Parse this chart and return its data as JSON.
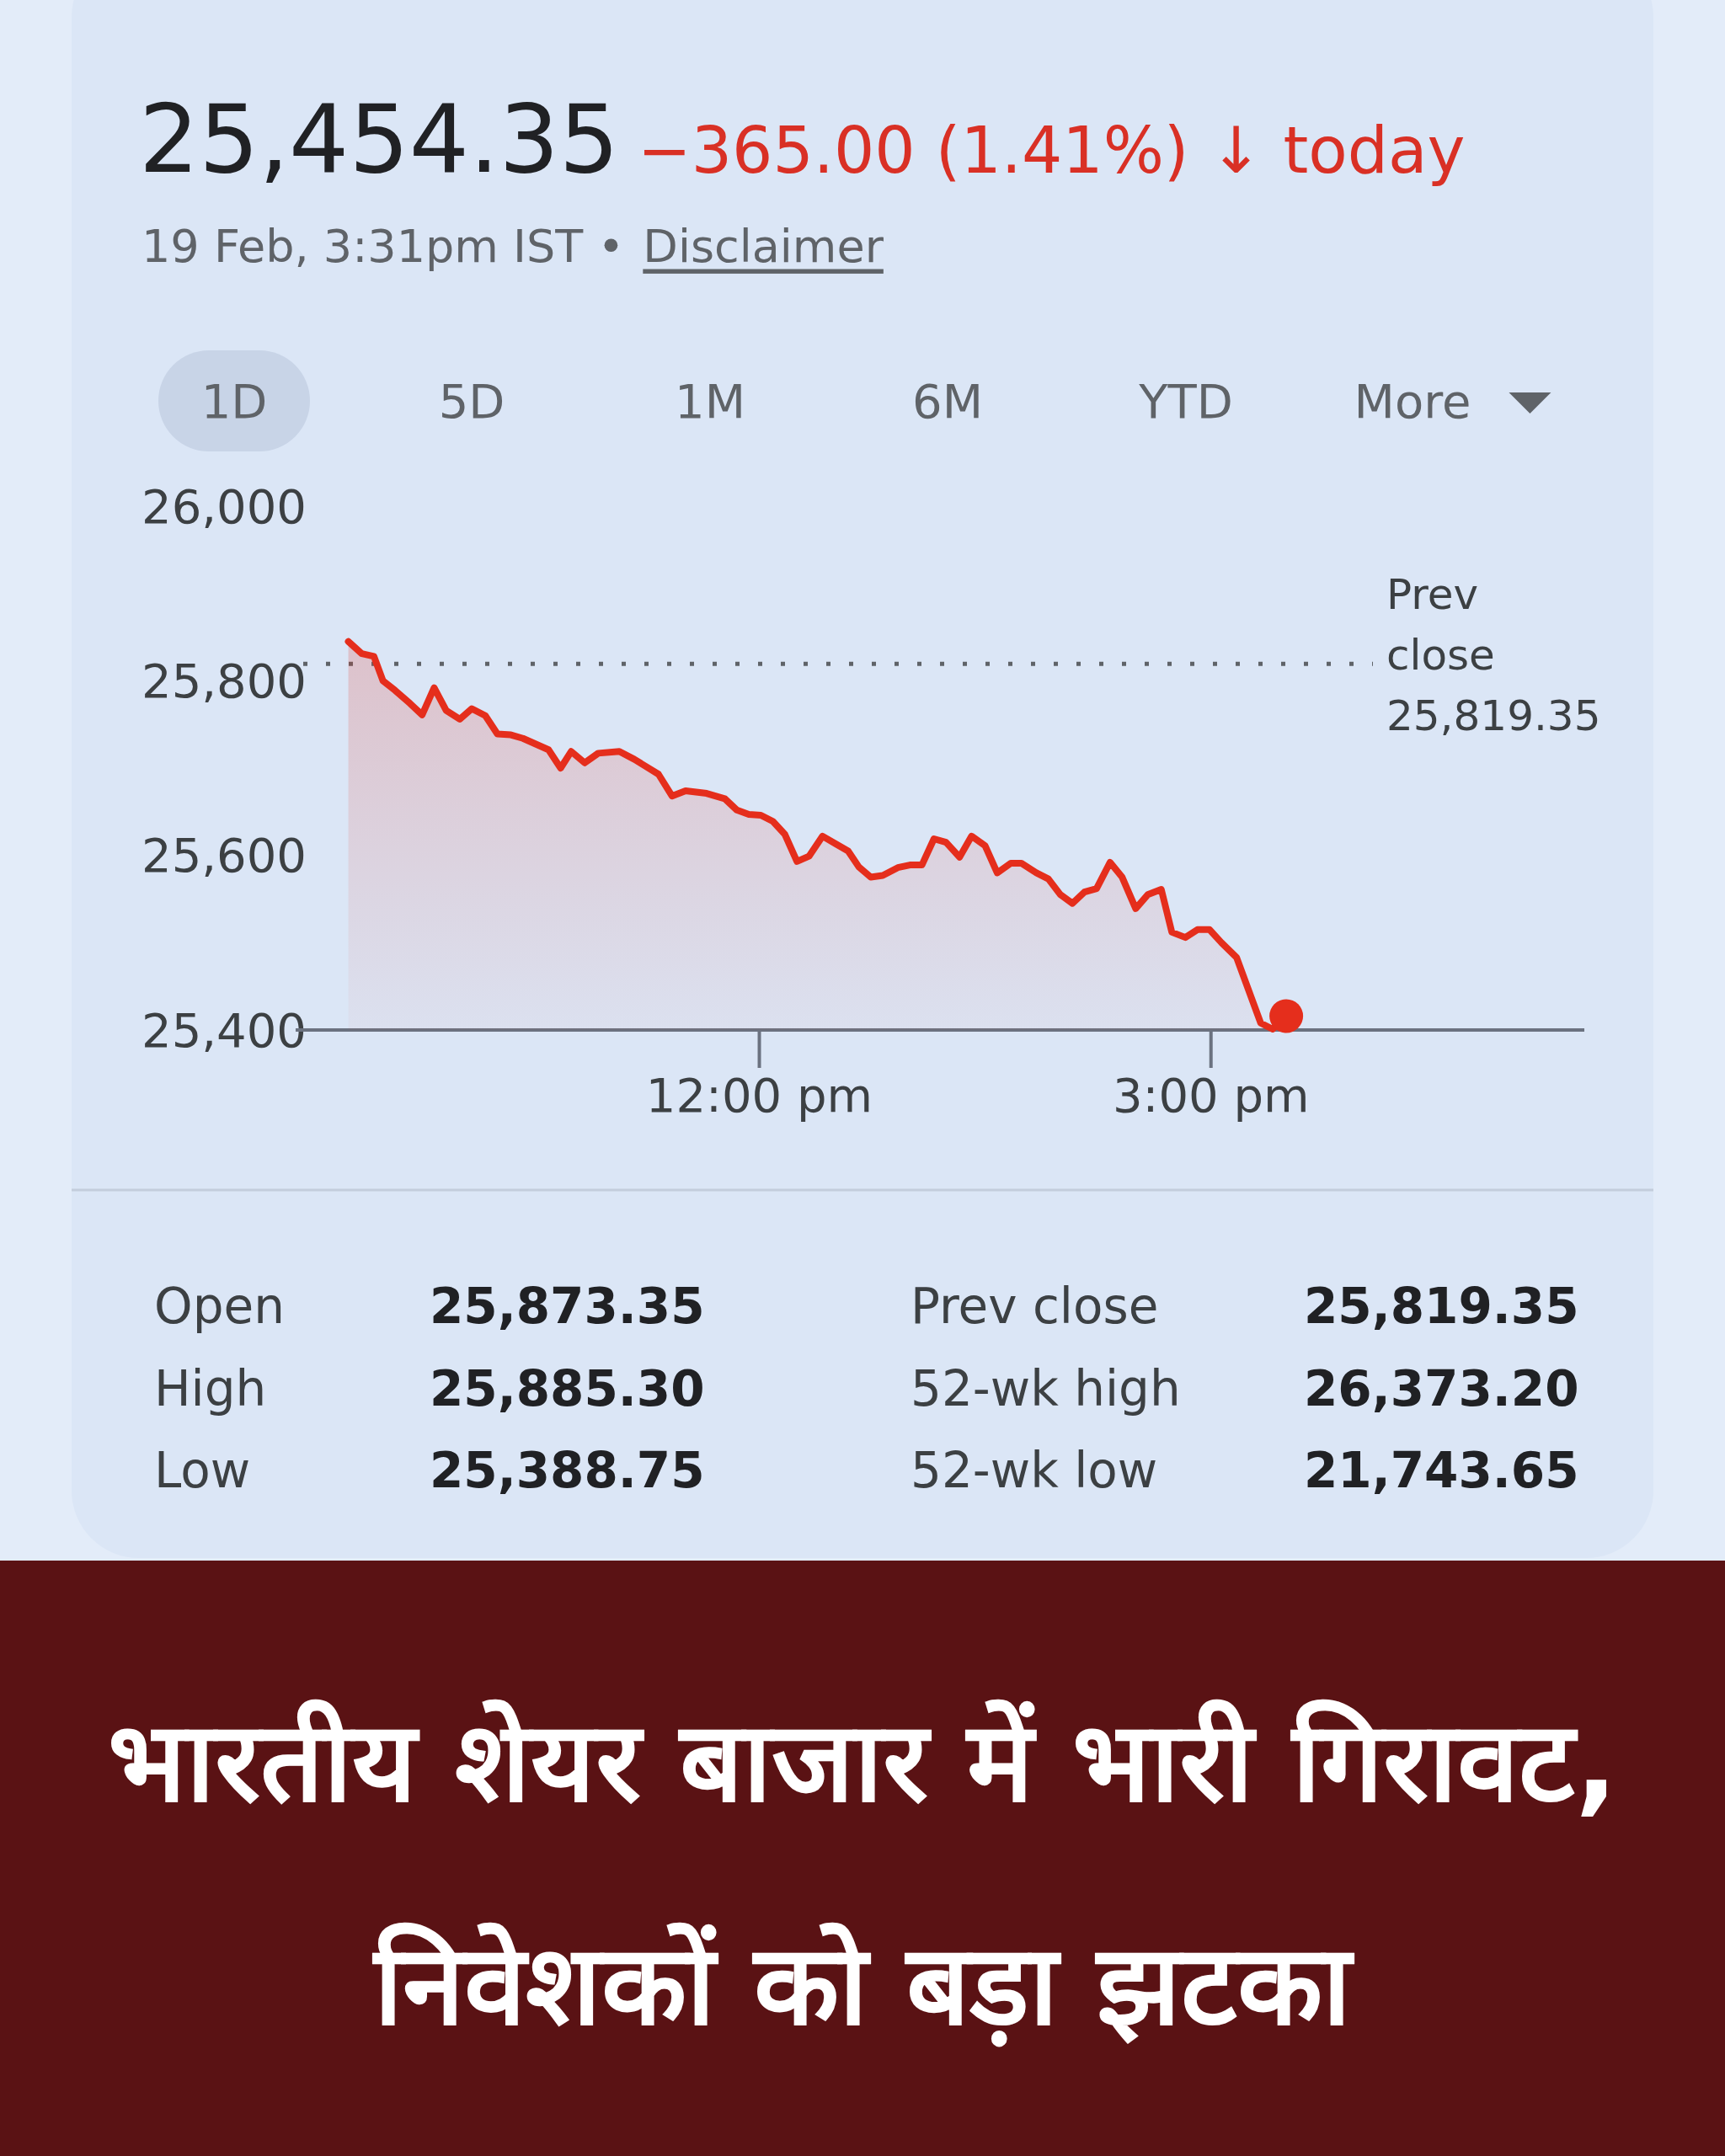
{
  "chart_data": {
    "type": "area",
    "title": "भारतीय शेयर बाजार में भारी गिरावट, निवेशकों को बड़ा झटका",
    "subtitle": "25,454.35",
    "x": [
      9.27,
      9.36,
      9.44,
      9.5,
      9.58,
      9.68,
      9.76,
      9.84,
      9.92,
      10.01,
      10.09,
      10.18,
      10.26,
      10.35,
      10.43,
      10.6,
      10.68,
      10.75,
      10.84,
      10.93,
      11.07,
      11.17,
      11.33,
      11.42,
      11.51,
      11.65,
      11.77,
      11.85,
      11.93,
      12.01,
      12.09,
      12.17,
      12.25,
      12.33,
      12.42,
      12.51,
      12.59,
      12.66,
      12.74,
      12.82,
      12.92,
      13.0,
      13.08,
      13.16,
      13.24,
      13.33,
      13.41,
      13.5,
      13.58,
      13.67,
      13.74,
      13.84,
      13.92,
      14.0,
      14.08,
      14.16,
      14.24,
      14.33,
      14.41,
      14.5,
      14.58,
      14.67,
      14.74,
      14.83,
      14.91,
      14.99,
      15.07,
      15.17,
      15.33,
      15.41,
      15.5
    ],
    "series": [
      {
        "color": "#e52e1c",
        "values": [
          25845,
          25831,
          25828,
          25800,
          25789,
          25774,
          25761,
          25792,
          25766,
          25756,
          25768,
          25760,
          25739,
          25738,
          25734,
          25721,
          25700,
          25719,
          25706,
          25717,
          25719,
          25710,
          25693,
          25668,
          25674,
          25671,
          25665,
          25652,
          25647,
          25646,
          25639,
          25624,
          25593,
          25599,
          25622,
          25613,
          25605,
          25587,
          25575,
          25577,
          25586,
          25589,
          25589,
          25619,
          25615,
          25598,
          25622,
          25611,
          25580,
          25591,
          25591,
          25580,
          25573,
          25555,
          25545,
          25558,
          25562,
          25592,
          25575,
          25539,
          25555,
          25561,
          25512,
          25506,
          25515,
          25515,
          25500,
          25483,
          25408,
          25401,
          25416
        ]
      },
      {
        "type": "scatter",
        "color": "#e52e1c",
        "x": [
          15.5
        ],
        "values": [
          25416
        ]
      }
    ],
    "xlim": [
      8.92,
      17.48
    ],
    "xticks": [
      {
        "value": 12,
        "label": "12:00 pm"
      },
      {
        "value": 15,
        "label": "3:00 pm"
      }
    ],
    "ylim": [
      25400,
      26000
    ],
    "yticks": [
      {
        "value": 25400,
        "label": "25,400"
      },
      {
        "value": 25600,
        "label": "25,600"
      },
      {
        "value": 25800,
        "label": "25,800"
      },
      {
        "value": 26000,
        "label": "26,000"
      }
    ],
    "ref_lines": [
      {
        "axis": "y",
        "value": 25819.35,
        "label": "Prev close 25,819.35",
        "line_style": "dotted",
        "color": "#5f6368"
      }
    ],
    "annotations": [
      "−365.00 (1.41%) ↓ today",
      "19 Feb, 3:31pm IST •",
      "Disclaimer",
      "1D",
      "5D",
      "1M",
      "6M",
      "YTD",
      "More",
      "Open",
      "25,873.35",
      "High",
      "25,885.30",
      "Low",
      "25,388.75",
      "Prev close",
      "25,819.35",
      "52-wk high",
      "26,373.20",
      "52-wk low",
      "21,743.65"
    ]
  }
}
